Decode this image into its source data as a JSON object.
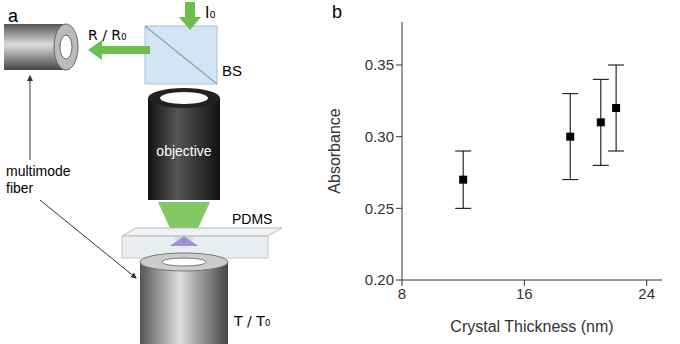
{
  "diagram": {
    "panel_label": "a",
    "incident": "I₀",
    "reflected": "R / R₀",
    "beam_splitter": "BS",
    "objective": "objective",
    "substrate": "PDMS",
    "transmitted": "T / T₀",
    "fiber": "multimode fiber"
  },
  "chart_data": {
    "type": "scatter",
    "panel_label": "b",
    "x_label": "Crystal Thickness (nm)",
    "y_label": "Absorbance",
    "x": [
      12,
      19,
      21,
      22
    ],
    "values": [
      0.27,
      0.3,
      0.31,
      0.32
    ],
    "errors": [
      0.02,
      0.03,
      0.03,
      0.03
    ],
    "color": "#000000",
    "marker": "square",
    "xlim": [
      8,
      25
    ],
    "xticks": [
      8,
      16,
      24
    ],
    "ylim": [
      0.2,
      0.38
    ],
    "yticks": [
      {
        "value": 0.2,
        "label": "0.20"
      },
      0.25,
      {
        "value": 0.3,
        "label": "0.30"
      },
      0.35
    ]
  }
}
